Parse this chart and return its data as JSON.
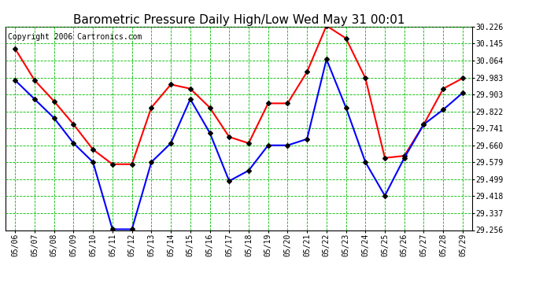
{
  "title": "Barometric Pressure Daily High/Low Wed May 31 00:01",
  "copyright": "Copyright 2006 Cartronics.com",
  "x_labels": [
    "05/06",
    "05/07",
    "05/08",
    "05/09",
    "05/10",
    "05/11",
    "05/12",
    "05/13",
    "05/14",
    "05/15",
    "05/16",
    "05/17",
    "05/18",
    "05/19",
    "05/20",
    "05/21",
    "05/22",
    "05/23",
    "05/24",
    "05/25",
    "05/26",
    "05/27",
    "05/28",
    "05/29"
  ],
  "high_values": [
    30.12,
    29.97,
    29.87,
    29.76,
    29.64,
    29.57,
    29.57,
    29.84,
    29.95,
    29.93,
    29.84,
    29.7,
    29.67,
    29.86,
    29.86,
    30.01,
    30.23,
    30.17,
    29.98,
    29.6,
    29.61,
    29.76,
    29.93,
    29.98
  ],
  "low_values": [
    29.97,
    29.88,
    29.79,
    29.67,
    29.58,
    29.26,
    29.26,
    29.58,
    29.67,
    29.88,
    29.72,
    29.49,
    29.54,
    29.66,
    29.66,
    29.69,
    30.07,
    29.84,
    29.58,
    29.42,
    29.6,
    29.76,
    29.83,
    29.91
  ],
  "y_ticks": [
    29.256,
    29.337,
    29.418,
    29.499,
    29.579,
    29.66,
    29.741,
    29.822,
    29.903,
    29.983,
    30.064,
    30.145,
    30.226
  ],
  "y_min": 29.256,
  "y_max": 30.226,
  "high_color": "#ff0000",
  "low_color": "#0000ff",
  "grid_color": "#00bb00",
  "bg_color": "#ffffff",
  "title_fontsize": 11,
  "copyright_fontsize": 7,
  "marker_size": 3,
  "line_width": 1.5
}
